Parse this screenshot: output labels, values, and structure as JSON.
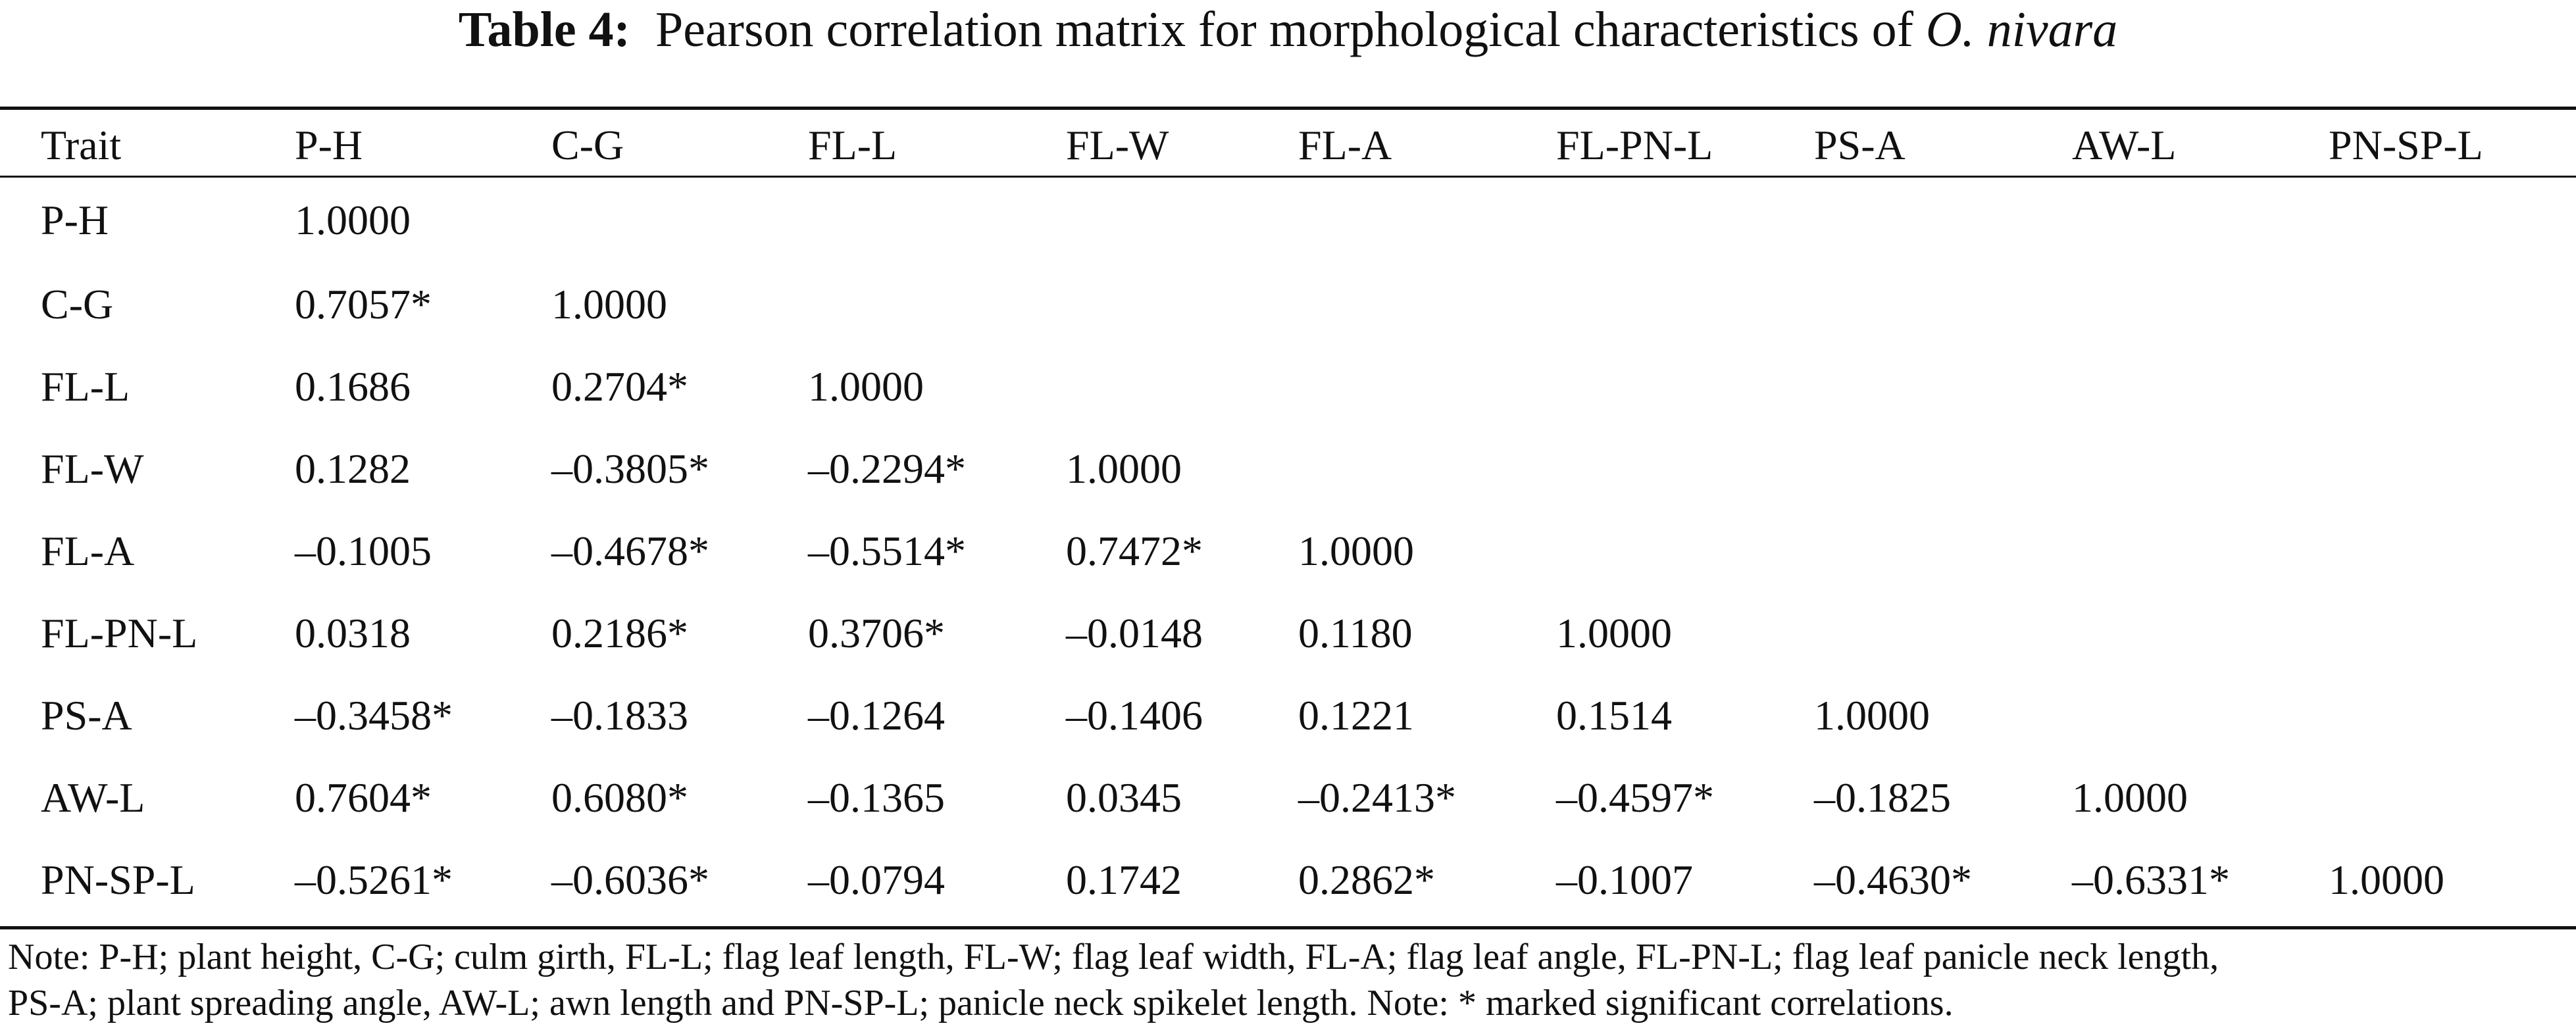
{
  "caption": {
    "label": "Table 4:",
    "text": "Pearson correlation matrix for morphological characteristics of",
    "species": "O. nivara"
  },
  "table": {
    "headers": [
      "Trait",
      "P-H",
      "C-G",
      "FL-L",
      "FL-W",
      "FL-A",
      "FL-PN-L",
      "PS-A",
      "AW-L",
      "PN-SP-L"
    ],
    "rows": [
      [
        "P-H",
        "1.0000",
        "",
        "",
        "",
        "",
        "",
        "",
        "",
        ""
      ],
      [
        "C-G",
        "0.7057*",
        "1.0000",
        "",
        "",
        "",
        "",
        "",
        "",
        ""
      ],
      [
        "FL-L",
        "0.1686",
        "0.2704*",
        "1.0000",
        "",
        "",
        "",
        "",
        "",
        ""
      ],
      [
        "FL-W",
        "0.1282",
        "–0.3805*",
        "–0.2294*",
        "1.0000",
        "",
        "",
        "",
        "",
        ""
      ],
      [
        "FL-A",
        "–0.1005",
        "–0.4678*",
        "–0.5514*",
        "0.7472*",
        "1.0000",
        "",
        "",
        "",
        ""
      ],
      [
        "FL-PN-L",
        "0.0318",
        "0.2186*",
        "0.3706*",
        "–0.0148",
        "0.1180",
        "1.0000",
        "",
        "",
        ""
      ],
      [
        "PS-A",
        "–0.3458*",
        "–0.1833",
        "–0.1264",
        "–0.1406",
        "0.1221",
        "0.1514",
        "1.0000",
        "",
        ""
      ],
      [
        "AW-L",
        "0.7604*",
        "0.6080*",
        "–0.1365",
        "0.0345",
        "–0.2413*",
        "–0.4597*",
        "–0.1825",
        "1.0000",
        ""
      ],
      [
        "PN-SP-L",
        "–0.5261*",
        "–0.6036*",
        "–0.0794",
        "0.1742",
        "0.2862*",
        "–0.1007",
        "–0.4630*",
        "–0.6331*",
        "1.0000"
      ]
    ]
  },
  "note": {
    "line1": "Note: P-H; plant height, C-G; culm girth, FL-L; flag leaf length, FL-W; flag leaf width, FL-A; flag leaf angle, FL-PN-L; flag leaf panicle neck length,",
    "line2": "PS-A; plant spreading angle, AW-L; awn length and PN-SP-L; panicle neck spikelet length. Note: * marked significant correlations."
  }
}
